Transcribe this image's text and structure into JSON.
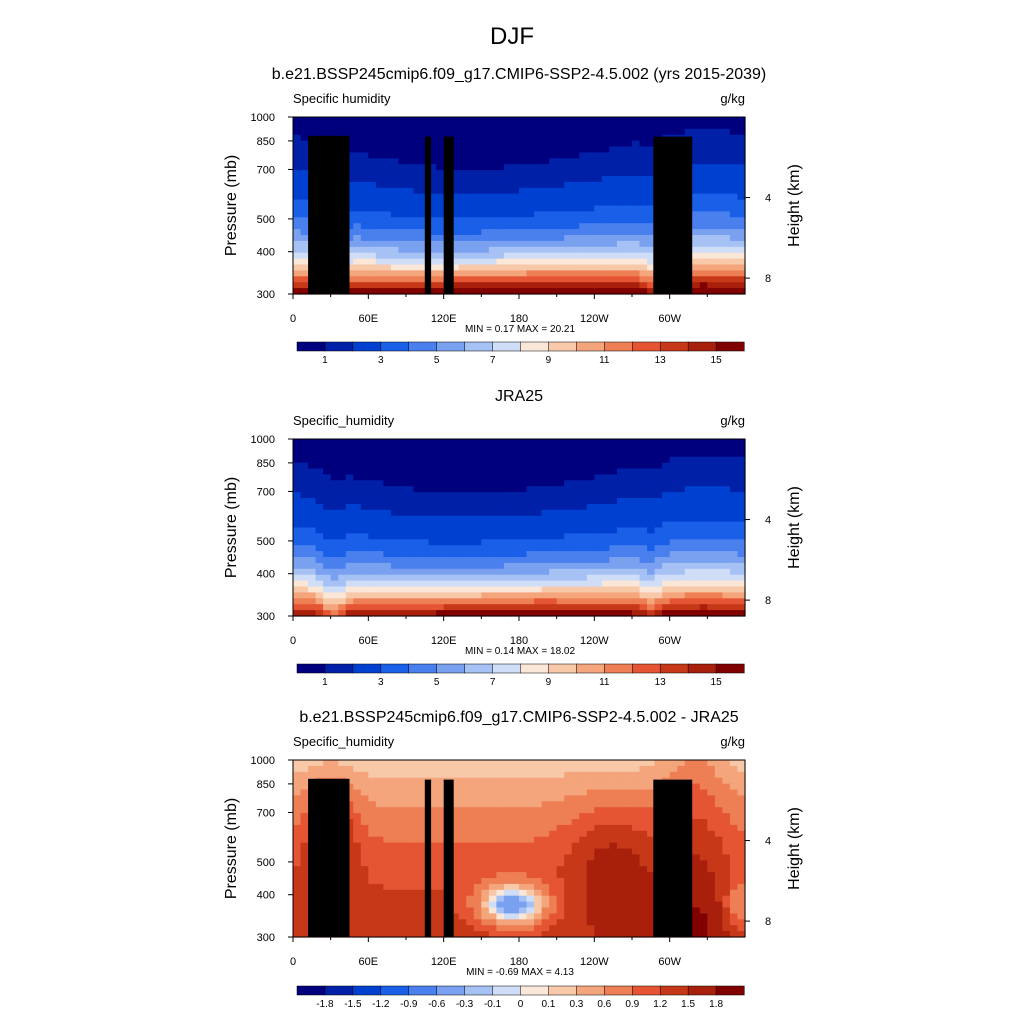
{
  "figure": {
    "title": "DJF"
  },
  "chart_data": [
    {
      "type": "heatmap",
      "title": "b.e21.BSSP245cmip6.f09_g17.CMIP6-SSP2-4.5.002 (yrs 2015-2039)",
      "variable": "Specific humidity",
      "units": "g/kg",
      "ylabel": "Pressure (mb)",
      "ylabel_right": "Height (km)",
      "x_ticks": [
        "0",
        "60E",
        "120E",
        "180",
        "120W",
        "60W"
      ],
      "x_tick_lon": [
        0,
        60,
        120,
        180,
        240,
        300
      ],
      "xlim": [
        0,
        355
      ],
      "y_ticks": [
        "300",
        "400",
        "500",
        "700",
        "850",
        "1000"
      ],
      "y_tick_p": [
        300,
        400,
        500,
        700,
        850,
        1000
      ],
      "ylim": [
        1000,
        300
      ],
      "right_ticks": [
        "8",
        "4"
      ],
      "right_tick_km": [
        8,
        4
      ],
      "stats": "MIN =   0.17  MAX =  20.21",
      "min": 0.17,
      "max": 20.21,
      "colorbar_labels": [
        "1",
        "3",
        "5",
        "7",
        "9",
        "11",
        "13",
        "15"
      ],
      "colorbar_levels": [
        0.5,
        1,
        2,
        3,
        4,
        5,
        6,
        7,
        8,
        9,
        10,
        11,
        12,
        13,
        14,
        15
      ],
      "colorbar_colors": [
        "#00007f",
        "#0020a8",
        "#0040d0",
        "#1a5fe8",
        "#4a80ee",
        "#7aa1f0",
        "#a6c1f4",
        "#cfddf6",
        "#fbe7d8",
        "#f8c9a9",
        "#f4a57c",
        "#ee7f55",
        "#e55533",
        "#c63818",
        "#a8200b",
        "#800000"
      ]
    },
    {
      "type": "heatmap",
      "title": "JRA25",
      "variable": "Specific_humidity",
      "units": "g/kg",
      "ylabel": "Pressure (mb)",
      "ylabel_right": "Height (km)",
      "x_ticks": [
        "0",
        "60E",
        "120E",
        "180",
        "120W",
        "60W"
      ],
      "x_tick_lon": [
        0,
        60,
        120,
        180,
        240,
        300
      ],
      "xlim": [
        0,
        355
      ],
      "y_ticks": [
        "300",
        "400",
        "500",
        "700",
        "850",
        "1000"
      ],
      "y_tick_p": [
        300,
        400,
        500,
        700,
        850,
        1000
      ],
      "ylim": [
        1000,
        300
      ],
      "right_ticks": [
        "8",
        "4"
      ],
      "right_tick_km": [
        8,
        4
      ],
      "stats": "MIN =   0.14  MAX =  18.02",
      "min": 0.14,
      "max": 18.02,
      "colorbar_labels": [
        "1",
        "3",
        "5",
        "7",
        "9",
        "11",
        "13",
        "15"
      ],
      "colorbar_levels": [
        0.5,
        1,
        2,
        3,
        4,
        5,
        6,
        7,
        8,
        9,
        10,
        11,
        12,
        13,
        14,
        15
      ],
      "colorbar_colors": [
        "#00007f",
        "#0020a8",
        "#0040d0",
        "#1a5fe8",
        "#4a80ee",
        "#7aa1f0",
        "#a6c1f4",
        "#cfddf6",
        "#fbe7d8",
        "#f8c9a9",
        "#f4a57c",
        "#ee7f55",
        "#e55533",
        "#c63818",
        "#a8200b",
        "#800000"
      ]
    },
    {
      "type": "heatmap",
      "title": "b.e21.BSSP245cmip6.f09_g17.CMIP6-SSP2-4.5.002 - JRA25",
      "variable": "Specific_humidity",
      "units": "g/kg",
      "ylabel": "Pressure (mb)",
      "ylabel_right": "Height (km)",
      "x_ticks": [
        "0",
        "60E",
        "120E",
        "180",
        "120W",
        "60W"
      ],
      "x_tick_lon": [
        0,
        60,
        120,
        180,
        240,
        300
      ],
      "xlim": [
        0,
        355
      ],
      "y_ticks": [
        "300",
        "400",
        "500",
        "700",
        "850",
        "1000"
      ],
      "y_tick_p": [
        300,
        400,
        500,
        700,
        850,
        1000
      ],
      "ylim": [
        1000,
        300
      ],
      "right_ticks": [
        "8",
        "4"
      ],
      "right_tick_km": [
        8,
        4
      ],
      "stats": "MIN =  -0.69  MAX =   4.13",
      "min": -0.69,
      "max": 4.13,
      "colorbar_labels": [
        "-1.8",
        "-1.5",
        "-1.2",
        "-0.9",
        "-0.6",
        "-0.3",
        "-0.1",
        "0",
        "0.1",
        "0.3",
        "0.6",
        "0.9",
        "1.2",
        "1.5",
        "1.8"
      ],
      "colorbar_levels": [
        -1.8,
        -1.5,
        -1.2,
        -0.9,
        -0.6,
        -0.3,
        -0.1,
        0,
        0.1,
        0.3,
        0.6,
        0.9,
        1.2,
        1.5,
        1.8
      ],
      "colorbar_colors": [
        "#00007f",
        "#0020a8",
        "#0040d0",
        "#1a5fe8",
        "#4a80ee",
        "#7aa1f0",
        "#a6c1f4",
        "#cfddf6",
        "#fbe7d8",
        "#f8c9a9",
        "#f4a57c",
        "#ee7f55",
        "#e55533",
        "#c63818",
        "#a8200b",
        "#800000"
      ]
    }
  ]
}
